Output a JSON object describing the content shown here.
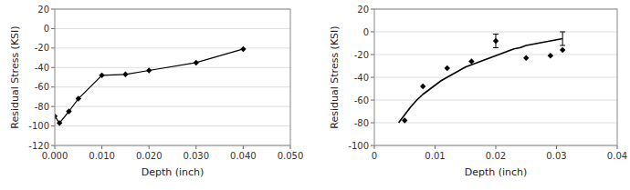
{
  "chart_data": [
    {
      "type": "line",
      "x": [
        0.0,
        0.001,
        0.003,
        0.005,
        0.01,
        0.015,
        0.02,
        0.03,
        0.04
      ],
      "values": [
        -90,
        -97,
        -85,
        -72,
        -48,
        -47,
        -43,
        -35,
        -21
      ],
      "color": "#000000",
      "marker": "diamond",
      "xlim": [
        0.0,
        0.05
      ],
      "xticks": [
        {
          "value": 0.0,
          "label": "0.000"
        },
        {
          "value": 0.01,
          "label": "0.010"
        },
        {
          "value": 0.02,
          "label": "0.020"
        },
        {
          "value": 0.03,
          "label": "0.030"
        },
        {
          "value": 0.04,
          "label": "0.040"
        },
        {
          "value": 0.05,
          "label": "0.050"
        }
      ],
      "ylim": [
        -120,
        20
      ],
      "yticks": [
        -120,
        -100,
        -80,
        -60,
        -40,
        -20,
        0,
        20
      ],
      "xlabel": "Depth (inch)",
      "ylabel": "Residual Stress (KSI)",
      "grid": true
    },
    {
      "type": "scatter",
      "series": [
        {
          "type": "line",
          "color": "#000000",
          "x": [
            0.004,
            0.005,
            0.006,
            0.007,
            0.008,
            0.009,
            0.01,
            0.011,
            0.012,
            0.013,
            0.014,
            0.015,
            0.016,
            0.017,
            0.018,
            0.019,
            0.02,
            0.021,
            0.022,
            0.023,
            0.024,
            0.025,
            0.026,
            0.027,
            0.028,
            0.029,
            0.03,
            0.031
          ],
          "values": [
            -80,
            -73,
            -66,
            -60,
            -55,
            -51,
            -47,
            -43,
            -40,
            -37,
            -34,
            -31,
            -29,
            -27,
            -25,
            -23,
            -21,
            -19,
            -17,
            -15,
            -14,
            -12,
            -11,
            -10,
            -9,
            -8,
            -7,
            -6
          ]
        },
        {
          "type": "scatter",
          "color": "#000000",
          "marker": "diamond",
          "x": [
            0.005,
            0.008,
            0.012,
            0.016,
            0.02,
            0.025,
            0.029,
            0.031
          ],
          "values": [
            -78,
            -48,
            -32,
            -26,
            -8,
            -23,
            -21,
            -16
          ]
        },
        {
          "type": "errorbar",
          "color": "#000000",
          "x": [
            0.02,
            0.031
          ],
          "values": [
            -8,
            -6
          ],
          "errors": [
            6,
            6
          ]
        }
      ],
      "xlim": [
        0.0,
        0.04
      ],
      "xticks": [
        0,
        0.01,
        0.02,
        0.03,
        0.04
      ],
      "ylim": [
        -100,
        20
      ],
      "yticks": [
        -100,
        -80,
        -60,
        -40,
        -20,
        0,
        20
      ],
      "xlabel": "Depth (inch)",
      "ylabel": "Residual Stress (KSI)",
      "grid": true
    }
  ]
}
